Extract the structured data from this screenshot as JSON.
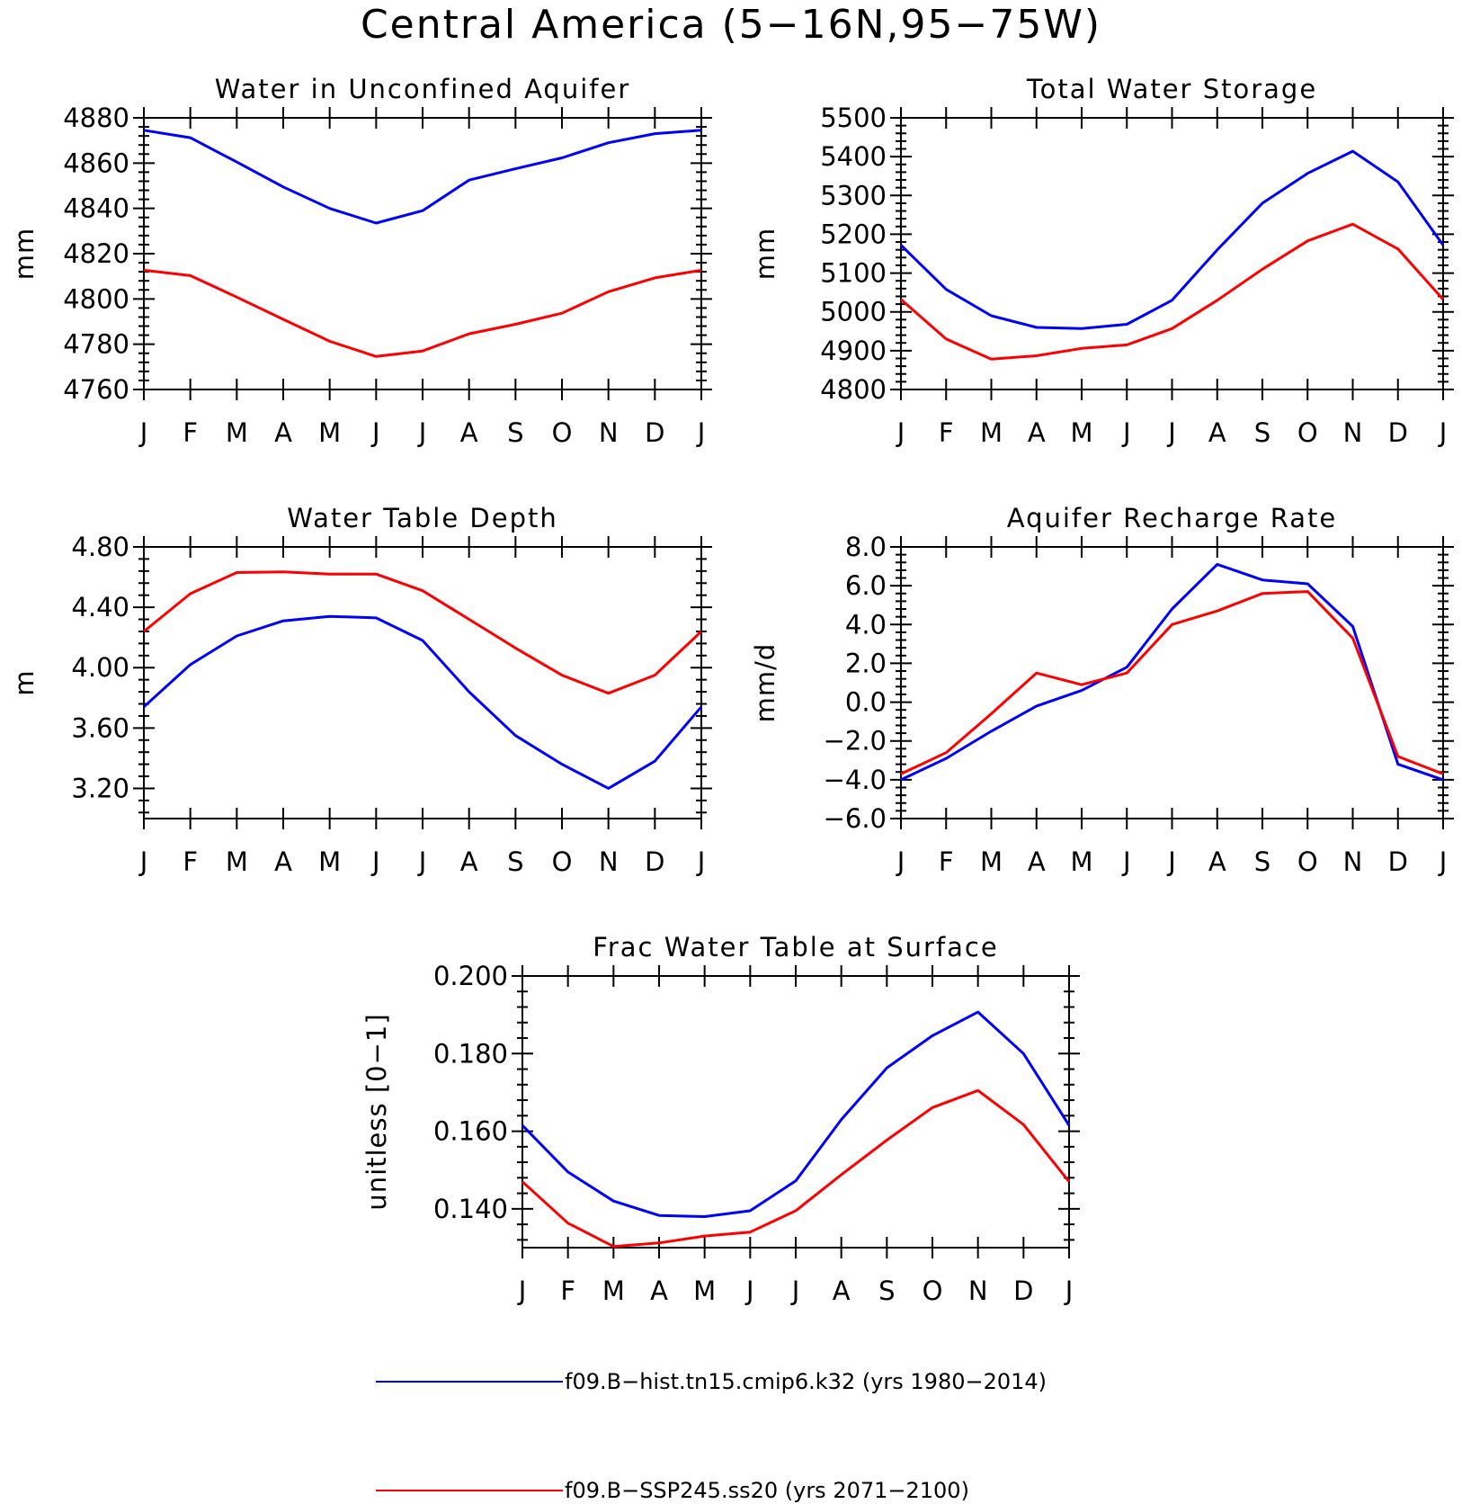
{
  "title": "Central America (5−16N,95−75W)",
  "months": [
    "J",
    "F",
    "M",
    "A",
    "M",
    "J",
    "J",
    "A",
    "S",
    "O",
    "N",
    "D",
    "J"
  ],
  "colors": {
    "hist": "#0000ff",
    "ssp": "#ff0000"
  },
  "legend": [
    {
      "label": "f09.B−hist.tn15.cmip6.k32 (yrs 1980−2014)",
      "color": "#0000ff"
    },
    {
      "label": "f09.B−SSP245.ss20 (yrs 2071−2100)",
      "color": "#ff0000"
    }
  ],
  "chart_data": [
    {
      "type": "line",
      "title": "Water in Unconfined Aquifer",
      "ylabel": "mm",
      "ylim": [
        4760,
        4880
      ],
      "yticks": [
        4760,
        4780,
        4800,
        4820,
        4840,
        4860,
        4880
      ],
      "ytick_labels": [
        "4760",
        "4780",
        "4800",
        "4820",
        "4840",
        "4860",
        "4880"
      ],
      "series": [
        {
          "name": "f09.B−hist.tn15.cmip6.k32 (yrs 1980−2014)",
          "color": "#0000ff",
          "values": [
            4874.5,
            4871.2,
            4860.5,
            4849.5,
            4840.0,
            4833.5,
            4839.0,
            4852.5,
            4857.5,
            4862.3,
            4869.0,
            4873.0,
            4874.5
          ]
        },
        {
          "name": "f09.B−SSP245.ss20 (yrs 2071−2100)",
          "color": "#ff0000",
          "values": [
            4812.7,
            4810.3,
            4800.8,
            4791.0,
            4781.3,
            4774.6,
            4777.0,
            4784.6,
            4788.8,
            4793.7,
            4803.2,
            4809.3,
            4812.7
          ]
        }
      ]
    },
    {
      "type": "line",
      "title": "Total Water Storage",
      "ylabel": "mm",
      "ylim": [
        4800,
        5500
      ],
      "yticks": [
        4800,
        4900,
        5000,
        5100,
        5200,
        5300,
        5400,
        5500
      ],
      "ytick_labels": [
        "4800",
        "4900",
        "5000",
        "5100",
        "5200",
        "5300",
        "5400",
        "5500"
      ],
      "series": [
        {
          "name": "f09.B−hist.tn15.cmip6.k32 (yrs 1980−2014)",
          "color": "#0000ff",
          "values": [
            5172,
            5058,
            4990,
            4960,
            4957,
            4968,
            5030,
            5160,
            5280,
            5357,
            5414,
            5335,
            5172
          ]
        },
        {
          "name": "f09.B−SSP245.ss20 (yrs 2071−2100)",
          "color": "#ff0000",
          "values": [
            5032,
            4930,
            4878,
            4887,
            4906,
            4915,
            4957,
            5030,
            5110,
            5183,
            5226,
            5162,
            5032
          ]
        }
      ]
    },
    {
      "type": "line",
      "title": "Water Table Depth",
      "ylabel": "m",
      "ylim": [
        3.0,
        4.8
      ],
      "yticks": [
        3.2,
        3.6,
        4.0,
        4.4,
        4.8
      ],
      "ytick_labels": [
        "3.20",
        "3.60",
        "4.00",
        "4.40",
        "4.80"
      ],
      "series": [
        {
          "name": "f09.B−hist.tn15.cmip6.k32 (yrs 1980−2014)",
          "color": "#0000ff",
          "values": [
            3.74,
            4.02,
            4.21,
            4.31,
            4.34,
            4.33,
            4.18,
            3.84,
            3.55,
            3.36,
            3.2,
            3.38,
            3.74
          ]
        },
        {
          "name": "f09.B−SSP245.ss20 (yrs 2071−2100)",
          "color": "#ff0000",
          "values": [
            4.24,
            4.49,
            4.63,
            4.635,
            4.62,
            4.62,
            4.51,
            4.32,
            4.13,
            3.95,
            3.83,
            3.95,
            4.24
          ]
        }
      ]
    },
    {
      "type": "line",
      "title": "Aquifer Recharge Rate",
      "ylabel": "mm/d",
      "ylim": [
        -6,
        8
      ],
      "yticks": [
        -6,
        -4,
        -2,
        0,
        2,
        4,
        6,
        8
      ],
      "ytick_labels": [
        "−6.0",
        "−4.0",
        "−2.0",
        "0.0",
        "2.0",
        "4.0",
        "6.0",
        "8.0"
      ],
      "series": [
        {
          "name": "f09.B−hist.tn15.cmip6.k32 (yrs 1980−2014)",
          "color": "#0000ff",
          "values": [
            -4.0,
            -2.9,
            -1.5,
            -0.2,
            0.6,
            1.8,
            4.8,
            7.1,
            6.3,
            6.1,
            3.9,
            -3.2,
            -4.0
          ]
        },
        {
          "name": "f09.B−SSP245.ss20 (yrs 2071−2100)",
          "color": "#ff0000",
          "values": [
            -3.7,
            -2.6,
            -0.6,
            1.5,
            0.9,
            1.5,
            4.0,
            4.7,
            5.6,
            5.7,
            3.3,
            -2.8,
            -3.7
          ]
        }
      ]
    },
    {
      "type": "line",
      "title": "Frac Water Table at Surface",
      "ylabel": "unitless [0−1]",
      "ylim": [
        0.13,
        0.2
      ],
      "yticks": [
        0.14,
        0.16,
        0.18,
        0.2
      ],
      "ytick_labels": [
        "0.140",
        "0.160",
        "0.180",
        "0.200"
      ],
      "series": [
        {
          "name": "f09.B−hist.tn15.cmip6.k32 (yrs 1980−2014)",
          "color": "#0000ff",
          "values": [
            0.1615,
            0.1495,
            0.142,
            0.1383,
            0.138,
            0.1395,
            0.1472,
            0.163,
            0.1763,
            0.1846,
            0.1907,
            0.18,
            0.1615
          ]
        },
        {
          "name": "f09.B−SSP245.ss20 (yrs 2071−2100)",
          "color": "#ff0000",
          "values": [
            0.147,
            0.1363,
            0.1303,
            0.1312,
            0.133,
            0.134,
            0.1395,
            0.1488,
            0.1577,
            0.1661,
            0.1705,
            0.1617,
            0.147
          ]
        }
      ]
    }
  ]
}
